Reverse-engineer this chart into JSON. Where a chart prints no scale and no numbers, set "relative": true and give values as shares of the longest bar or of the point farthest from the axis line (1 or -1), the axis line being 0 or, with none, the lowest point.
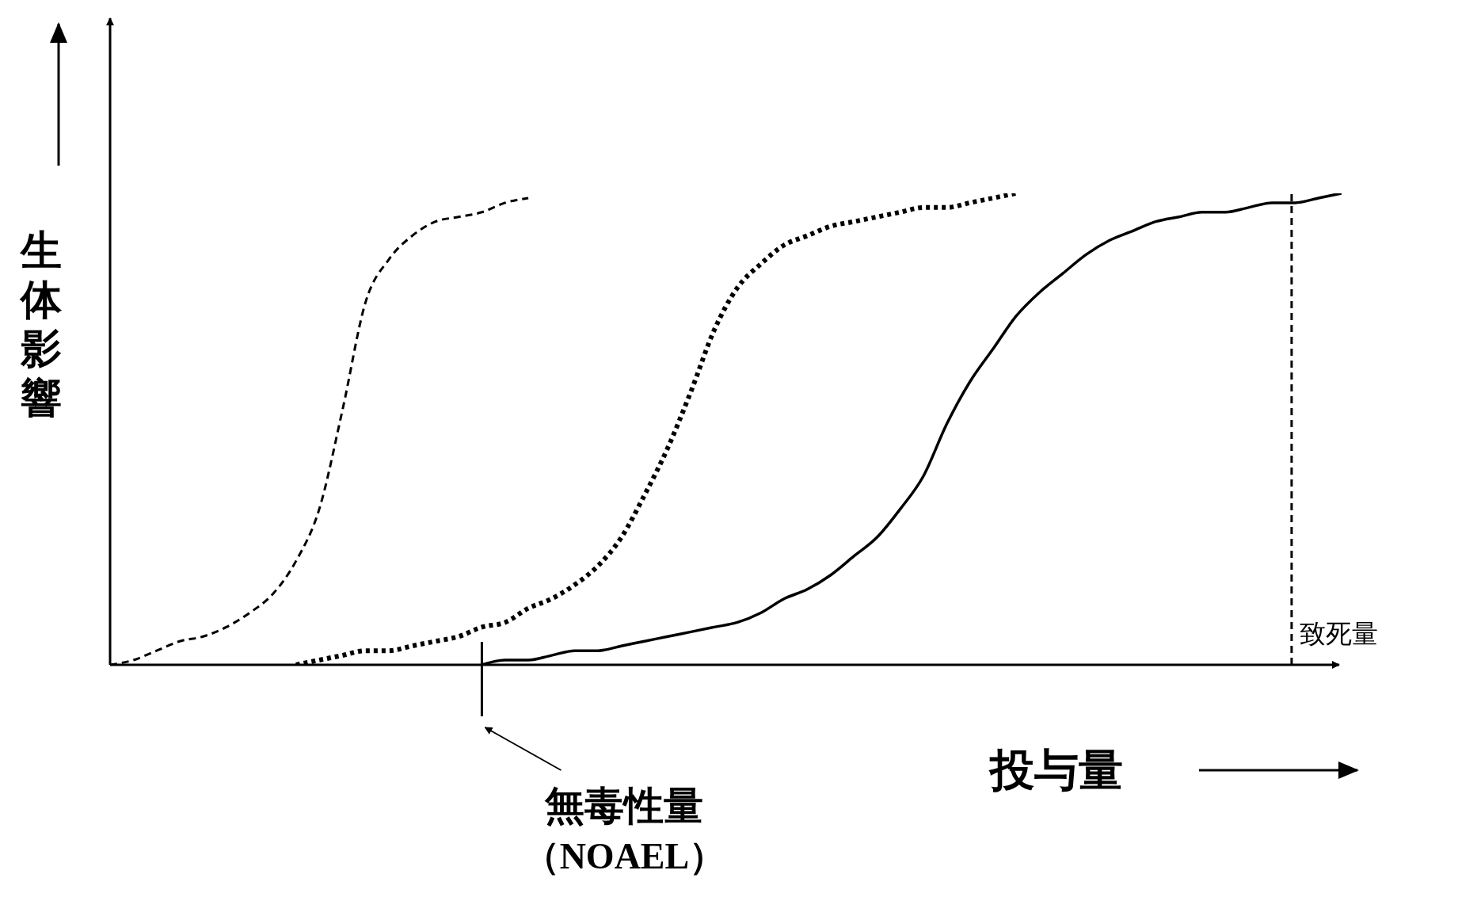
{
  "chart_data": {
    "type": "line",
    "relative": true,
    "xlabel": "投与量",
    "ylabel": "生体影響",
    "categories": [
      null,
      null,
      null,
      null,
      null,
      null,
      null,
      null,
      null,
      null,
      null,
      null,
      null,
      null,
      null,
      null,
      null,
      null,
      null,
      null,
      null,
      null,
      null,
      null,
      null,
      null,
      null,
      null,
      null,
      null,
      null,
      null,
      null,
      null,
      null,
      null,
      null,
      null,
      null,
      null,
      null,
      null,
      null,
      null,
      null,
      null,
      null,
      null,
      null,
      null,
      null,
      null,
      null,
      null
    ],
    "series": [
      {
        "color": "#000000",
        "line_style": "dashed",
        "values": [
          0,
          0.01,
          0.03,
          0.05,
          0.06,
          0.08,
          0.11,
          0.15,
          0.22,
          0.33,
          0.54,
          0.77,
          0.86,
          0.91,
          0.94,
          0.95,
          0.96,
          0.98,
          0.99,
          null,
          null,
          null,
          null,
          null,
          null,
          null,
          null,
          null,
          null,
          null,
          null,
          null,
          null,
          null,
          null,
          null,
          null,
          null,
          null,
          null,
          null,
          null,
          null,
          null,
          null,
          null,
          null,
          null,
          null,
          null,
          null,
          null,
          null,
          null
        ]
      },
      {
        "color": "#000000",
        "line_style": "dotted",
        "values": [
          null,
          null,
          null,
          null,
          null,
          null,
          null,
          null,
          0,
          0.01,
          0.02,
          0.03,
          0.03,
          0.04,
          0.05,
          0.06,
          0.08,
          0.09,
          0.12,
          0.14,
          0.17,
          0.21,
          0.27,
          0.36,
          0.46,
          0.58,
          0.71,
          0.8,
          0.85,
          0.89,
          0.91,
          0.93,
          0.94,
          0.95,
          0.96,
          0.97,
          0.97,
          0.98,
          0.99,
          1,
          null,
          null,
          null,
          null,
          null,
          null,
          null,
          null,
          null,
          null,
          null,
          null,
          null,
          null
        ]
      },
      {
        "color": "#000000",
        "line_style": "solid",
        "values": [
          null,
          null,
          null,
          null,
          null,
          null,
          null,
          null,
          null,
          null,
          null,
          null,
          null,
          null,
          null,
          null,
          0,
          0.01,
          0.01,
          0.02,
          0.03,
          0.03,
          0.04,
          0.05,
          0.06,
          0.07,
          0.08,
          0.09,
          0.11,
          0.14,
          0.16,
          0.19,
          0.23,
          0.27,
          0.33,
          0.4,
          0.51,
          0.6,
          0.67,
          0.74,
          0.79,
          0.83,
          0.87,
          0.9,
          0.92,
          0.94,
          0.95,
          0.96,
          0.96,
          0.97,
          0.98,
          0.98,
          0.99,
          1
        ]
      }
    ],
    "annotations": [
      "無毒性量",
      "（NOAEL）",
      "致死量"
    ],
    "marker": "none"
  }
}
